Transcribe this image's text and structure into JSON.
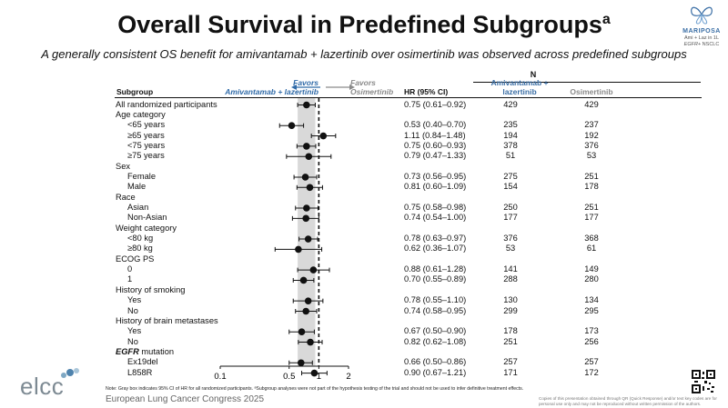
{
  "title": "Overall Survival in Predefined Subgroups",
  "title_sup": "a",
  "subtitle": "A generally consistent OS benefit for amivantamab + lazertinib over osimertinib was observed across predefined subgroups",
  "logo": {
    "name": "MARIPOSA",
    "line1": "Ami + Laz in 1L",
    "line2": "EGFR+ NSCLC"
  },
  "table_header": {
    "subgroup": "Subgroup",
    "favors_left_1": "Favors",
    "favors_left_2": "Amivantamab + lazertinib",
    "favors_right_1": "Favors",
    "favors_right_2": "Osimertinib",
    "hr": "HR (95% CI)",
    "n": "N",
    "arm1_1": "Amivantamab +",
    "arm1_2": "lazertinib",
    "arm2": "Osimertinib"
  },
  "chart_data": {
    "type": "forest",
    "x_axis": {
      "scale": "log",
      "range": [
        0.1,
        2
      ],
      "ticks": [
        0.1,
        0.5,
        1,
        2
      ],
      "tick_labels": [
        "0.1",
        "0.5",
        "1",
        "2"
      ],
      "reference_line": 1,
      "shaded_band": [
        0.61,
        0.92
      ]
    },
    "rows": [
      {
        "label": "All randomized participants",
        "indent": 0,
        "hr": 0.75,
        "lo": 0.61,
        "hi": 0.92,
        "hr_text": "0.75 (0.61–0.92)",
        "n1": "429",
        "n2": "429"
      },
      {
        "label": "Age category",
        "indent": 0
      },
      {
        "label": "<65 years",
        "indent": 1,
        "hr": 0.53,
        "lo": 0.4,
        "hi": 0.7,
        "hr_text": "0.53 (0.40–0.70)",
        "n1": "235",
        "n2": "237"
      },
      {
        "label": "≥65 years",
        "indent": 1,
        "hr": 1.11,
        "lo": 0.84,
        "hi": 1.48,
        "hr_text": "1.11 (0.84–1.48)",
        "n1": "194",
        "n2": "192"
      },
      {
        "label": "<75 years",
        "indent": 1,
        "hr": 0.75,
        "lo": 0.6,
        "hi": 0.93,
        "hr_text": "0.75 (0.60–0.93)",
        "n1": "378",
        "n2": "376"
      },
      {
        "label": "≥75 years",
        "indent": 1,
        "hr": 0.79,
        "lo": 0.47,
        "hi": 1.33,
        "hr_text": "0.79 (0.47–1.33)",
        "n1": "51",
        "n2": "53"
      },
      {
        "label": "Sex",
        "indent": 0
      },
      {
        "label": "Female",
        "indent": 1,
        "hr": 0.73,
        "lo": 0.56,
        "hi": 0.95,
        "hr_text": "0.73 (0.56–0.95)",
        "n1": "275",
        "n2": "251"
      },
      {
        "label": "Male",
        "indent": 1,
        "hr": 0.81,
        "lo": 0.6,
        "hi": 1.09,
        "hr_text": "0.81 (0.60–1.09)",
        "n1": "154",
        "n2": "178"
      },
      {
        "label": "Race",
        "indent": 0
      },
      {
        "label": "Asian",
        "indent": 1,
        "hr": 0.75,
        "lo": 0.58,
        "hi": 0.98,
        "hr_text": "0.75 (0.58–0.98)",
        "n1": "250",
        "n2": "251"
      },
      {
        "label": "Non-Asian",
        "indent": 1,
        "hr": 0.74,
        "lo": 0.54,
        "hi": 1.0,
        "hr_text": "0.74 (0.54–1.00)",
        "n1": "177",
        "n2": "177"
      },
      {
        "label": "Weight category",
        "indent": 0
      },
      {
        "label": "<80 kg",
        "indent": 1,
        "hr": 0.78,
        "lo": 0.63,
        "hi": 0.97,
        "hr_text": "0.78 (0.63–0.97)",
        "n1": "376",
        "n2": "368"
      },
      {
        "label": "≥80 kg",
        "indent": 1,
        "hr": 0.62,
        "lo": 0.36,
        "hi": 1.07,
        "hr_text": "0.62 (0.36–1.07)",
        "n1": "53",
        "n2": "61"
      },
      {
        "label": "ECOG PS",
        "indent": 0
      },
      {
        "label": "0",
        "indent": 1,
        "hr": 0.88,
        "lo": 0.61,
        "hi": 1.28,
        "hr_text": "0.88 (0.61–1.28)",
        "n1": "141",
        "n2": "149"
      },
      {
        "label": "1",
        "indent": 1,
        "hr": 0.7,
        "lo": 0.55,
        "hi": 0.89,
        "hr_text": "0.70 (0.55–0.89)",
        "n1": "288",
        "n2": "280"
      },
      {
        "label": "History of smoking",
        "indent": 0
      },
      {
        "label": "Yes",
        "indent": 1,
        "hr": 0.78,
        "lo": 0.55,
        "hi": 1.1,
        "hr_text": "0.78 (0.55–1.10)",
        "n1": "130",
        "n2": "134"
      },
      {
        "label": "No",
        "indent": 1,
        "hr": 0.74,
        "lo": 0.58,
        "hi": 0.95,
        "hr_text": "0.74 (0.58–0.95)",
        "n1": "299",
        "n2": "295"
      },
      {
        "label": "History of brain metastases",
        "indent": 0
      },
      {
        "label": "Yes",
        "indent": 1,
        "hr": 0.67,
        "lo": 0.5,
        "hi": 0.9,
        "hr_text": "0.67 (0.50–0.90)",
        "n1": "178",
        "n2": "173"
      },
      {
        "label": "No",
        "indent": 1,
        "hr": 0.82,
        "lo": 0.62,
        "hi": 1.08,
        "hr_text": "0.82 (0.62–1.08)",
        "n1": "251",
        "n2": "256"
      },
      {
        "label": "EGFR mutation",
        "indent": 0,
        "italic_prefix": "EGFR",
        "rest": " mutation"
      },
      {
        "label": "Ex19del",
        "indent": 1,
        "hr": 0.66,
        "lo": 0.5,
        "hi": 0.86,
        "hr_text": "0.66 (0.50–0.86)",
        "n1": "257",
        "n2": "257"
      },
      {
        "label": "L858R",
        "indent": 1,
        "hr": 0.9,
        "lo": 0.67,
        "hi": 1.21,
        "hr_text": "0.90 (0.67–1.21)",
        "n1": "171",
        "n2": "172"
      }
    ]
  },
  "colors": {
    "accent": "#3a6ea5",
    "favors_left": "#2f6aa8",
    "favors_right": "#8a8a8a",
    "band": "#d9d9d9"
  },
  "footnote": "Note: Gray box indicates 95% CI of HR for all randomized participants. ᵃSubgroup analyses were not part of the hypothesis testing of the trial and should not be used to infer definitive treatment effects.",
  "elcc": "elcc",
  "conference": "European Lung Cancer Congress 2025",
  "copyright_1": "Copies of this presentation obtained through QR (Quick Response) and/or text key codes are for",
  "copyright_2": "personal use only and may not be reproduced without written permission of the authors."
}
